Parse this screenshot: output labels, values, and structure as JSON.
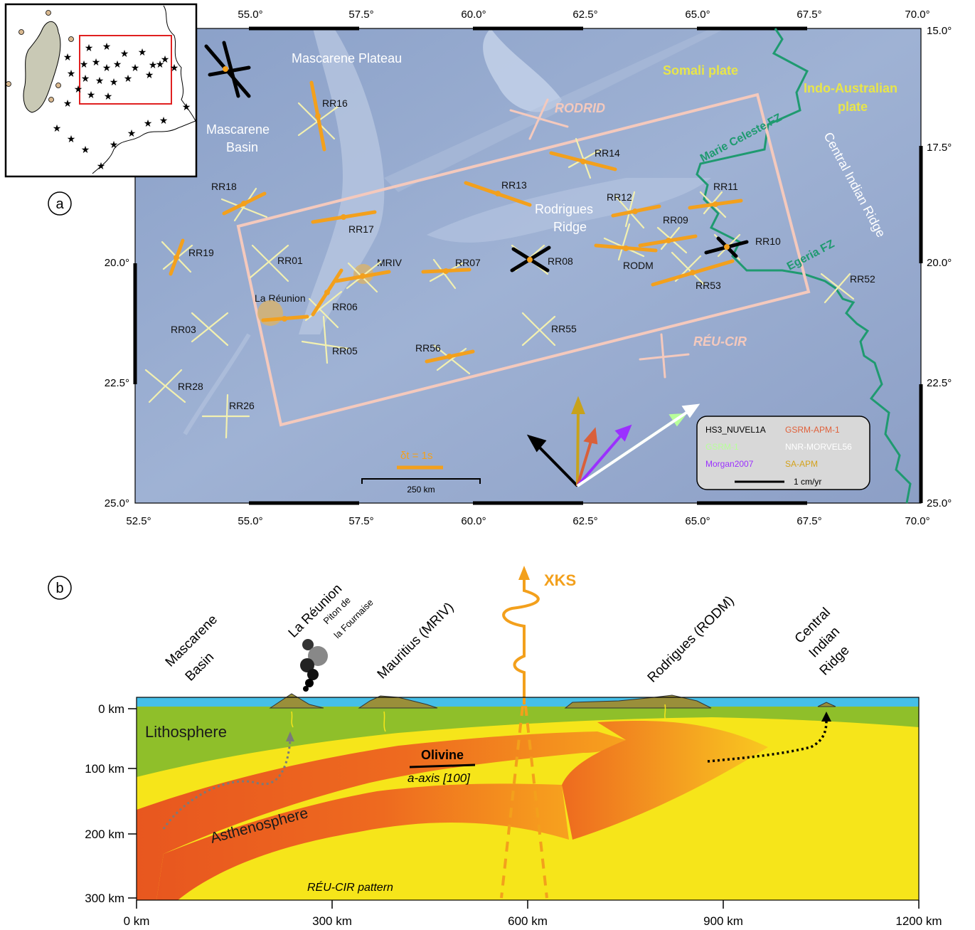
{
  "panel_labels": {
    "a": "a",
    "b": "b"
  },
  "map": {
    "lon_ticks_top": [
      "55.0°",
      "57.5°",
      "60.0°",
      "62.5°",
      "65.0°",
      "67.5°",
      "70.0°"
    ],
    "lon_ticks_bottom": [
      "52.5°",
      "55.0°",
      "57.5°",
      "60.0°",
      "62.5°",
      "65.0°",
      "67.5°",
      "70.0°"
    ],
    "lat_ticks_left": [
      "20.0°",
      "22.5°",
      "25.0°"
    ],
    "lat_ticks_right": [
      "15.0°",
      "17.5°",
      "20.0°",
      "22.5°",
      "25.0°"
    ],
    "regions": {
      "mascarene_plateau": "Mascarene Plateau",
      "mascarene_basin_1": "Mascarene",
      "mascarene_basin_2": "Basin",
      "rodrigues_ridge_1": "Rodrigues",
      "rodrigues_ridge_2": "Ridge",
      "somali_plate": "Somali plate",
      "indo_australian_1": "Indo-Australian",
      "indo_australian_2": "plate",
      "marie_celeste": "Marie Celeste FZ",
      "egeria": "Egeria FZ",
      "cir": "Central Indian Ridge",
      "la_reunion": "La Réunion",
      "mriv": "MRIV",
      "rodrid": "RODRID",
      "reu_cir": "RÉU-CIR"
    },
    "stations": {
      "RR16": "RR16",
      "RR18": "RR18",
      "RR17": "RR17",
      "RR19": "RR19",
      "RR01": "RR01",
      "RR06": "RR06",
      "RR07": "RR07",
      "RR08": "RR08",
      "RR13": "RR13",
      "RR14": "RR14",
      "RR12": "RR12",
      "RR11": "RR11",
      "RR09": "RR09",
      "RR10": "RR10",
      "RODM": "RODM",
      "RR53": "RR53",
      "RR52": "RR52",
      "RR03": "RR03",
      "RR05": "RR05",
      "RR56": "RR56",
      "RR55": "RR55",
      "RR28": "RR28",
      "RR26": "RR26"
    },
    "scale_dt": "δt = 1s",
    "scale_km": "250 km",
    "legend": {
      "hs3": "HS3_NUVEL1A",
      "gsrm": "GSRM-APM-1",
      "gsrm_color": "#e0603a",
      "green_model": "GSRM-1",
      "green_color": "#b8ff9a",
      "nnr": "NNR-MORVEL56",
      "morgan": "Morgan2007",
      "morgan_color": "#9b30ff",
      "sa": "SA-APM",
      "sa_color": "#d4a21a",
      "scale": "1 cm/yr"
    }
  },
  "section": {
    "places": {
      "mascarene_1": "Mascarene",
      "mascarene_2": "Basin",
      "reunion": "La Réunion",
      "piton_1": "Piton de",
      "piton_2": "la Fournaise",
      "mauritius": "Mauritius (MRIV)",
      "rodrigues": "Rodrigues (RODM)",
      "cir_1": "Central",
      "cir_2": "Indian",
      "cir_3": "Ridge"
    },
    "xks": "XKS",
    "lithosphere": "Lithosphere",
    "asthenosphere": "Asthenosphere",
    "olivine": "Olivine",
    "aaxis": "a-axis [100]",
    "pattern": "RÉU-CIR pattern",
    "depth_ticks": [
      "0 km",
      "100 km",
      "200 km",
      "300 km"
    ],
    "dist_ticks": [
      "0 km",
      "300 km",
      "600 km",
      "900 km",
      "1200 km"
    ]
  }
}
